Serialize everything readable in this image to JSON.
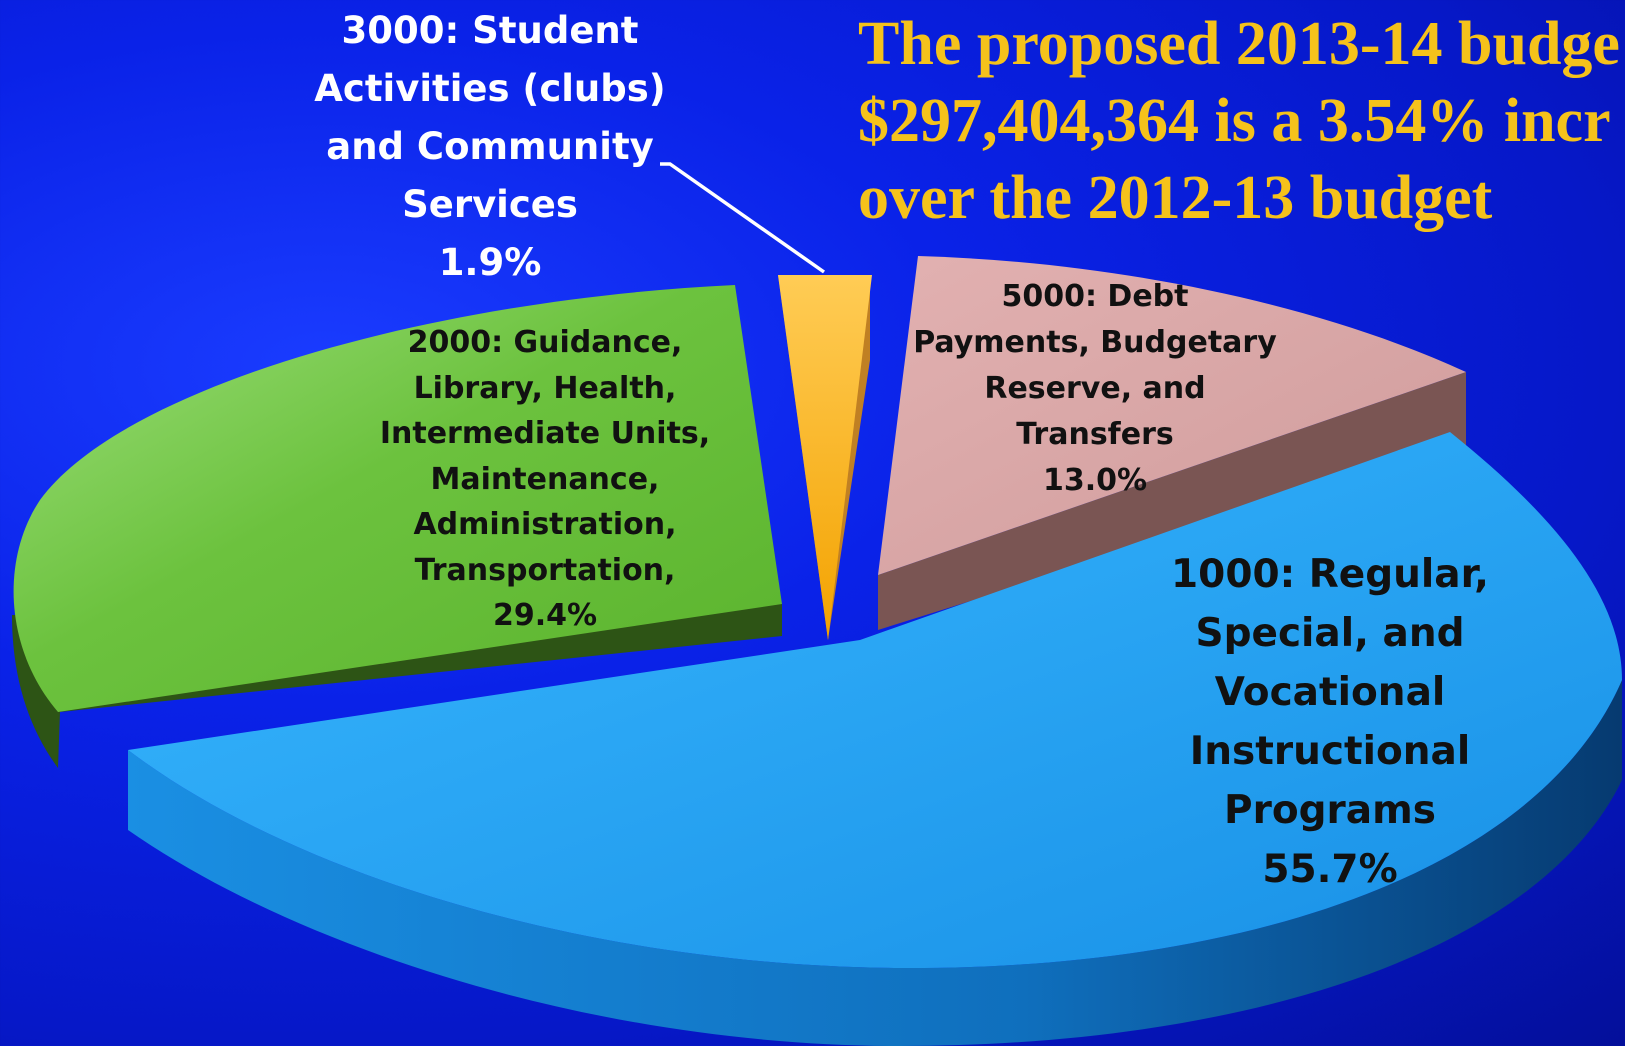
{
  "headline": {
    "lines": [
      "The proposed 2013-14 budge",
      "$297,404,364 is a 3.54% incr",
      "over the 2012-13 budget"
    ]
  },
  "chart_data": {
    "type": "pie",
    "title": "",
    "slices": [
      {
        "code": "1000",
        "label_lines": [
          "1000: Regular,",
          "Special, and",
          "Vocational",
          "Instructional",
          "Programs"
        ],
        "percent_text": "55.7%",
        "value": 55.7,
        "color": "#1e9ff0"
      },
      {
        "code": "2000",
        "label_lines": [
          "2000:  Guidance,",
          "Library, Health,",
          "Intermediate Units,",
          "Maintenance,",
          "Administration,",
          "Transportation,"
        ],
        "percent_text": "29.4%",
        "value": 29.4,
        "color": "#6cbf3a"
      },
      {
        "code": "3000",
        "label_lines": [
          "3000:  Student",
          "Activities (clubs)",
          "and Community",
          "Services"
        ],
        "percent_text": "1.9%",
        "value": 1.9,
        "color": "#f5b417"
      },
      {
        "code": "5000",
        "label_lines": [
          "5000:  Debt",
          "Payments, Budgetary",
          "Reserve, and",
          "Transfers"
        ],
        "percent_text": "13.0%",
        "value": 13.0,
        "color": "#d9a6a6"
      }
    ]
  }
}
